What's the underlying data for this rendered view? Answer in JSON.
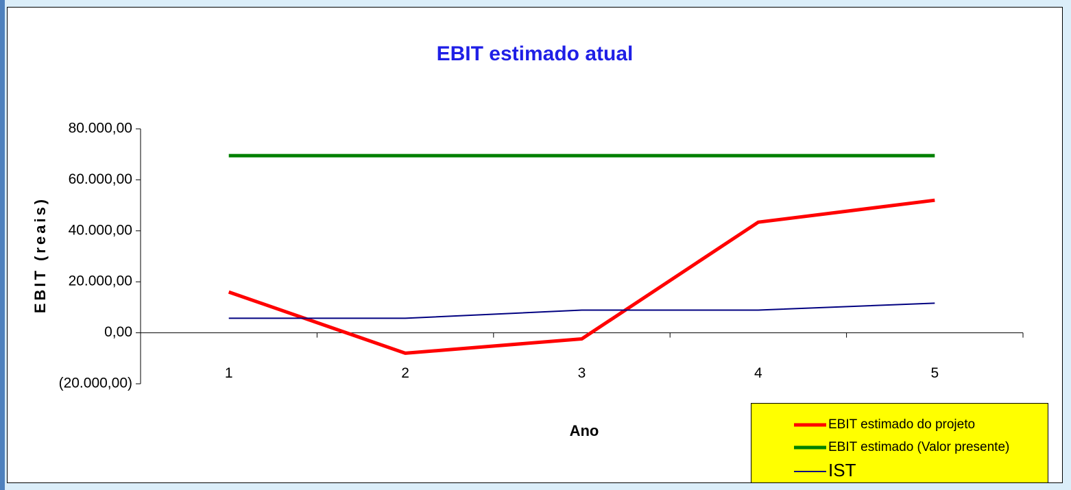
{
  "chart_data": {
    "type": "line",
    "title": "EBIT estimado atual",
    "y_label": "EBIT (reais)",
    "x_label": "Ano",
    "categories": [
      "1",
      "2",
      "3",
      "4",
      "5"
    ],
    "series": [
      {
        "name": "EBIT estimado do projeto",
        "color": "#ff0000",
        "values": [
          16000,
          -8000,
          -2400,
          43400,
          52000
        ]
      },
      {
        "name": "EBIT estimado (Valor presente)",
        "color": "#008000",
        "values": [
          69500,
          69500,
          69500,
          69500,
          69500
        ]
      },
      {
        "name": "IST",
        "color": "#000080",
        "values": [
          5700,
          5700,
          8900,
          8900,
          11600
        ]
      }
    ],
    "ylim": [
      -20000,
      80000
    ],
    "yticks": [
      {
        "value": -20000,
        "label": "(20.000,00)"
      },
      {
        "value": 0,
        "label": "0,00"
      },
      {
        "value": 20000,
        "label": "20.000,00"
      },
      {
        "value": 40000,
        "label": "40.000,00"
      },
      {
        "value": 60000,
        "label": "60.000,00"
      },
      {
        "value": 80000,
        "label": "80.000,00"
      }
    ],
    "grid": false,
    "legend": "lower right"
  }
}
